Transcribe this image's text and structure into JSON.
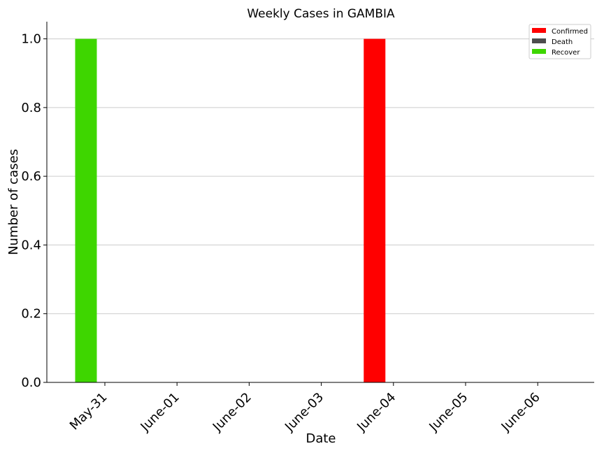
{
  "chart_data": {
    "type": "bar",
    "title": "Weekly Cases in GAMBIA",
    "xlabel": "Date",
    "ylabel": "Number of cases",
    "categories": [
      "May-31",
      "June-01",
      "June-02",
      "June-03",
      "June-04",
      "June-05",
      "June-06"
    ],
    "series": [
      {
        "name": "Confirmed",
        "color": "#ff0000",
        "values": [
          0,
          0,
          0,
          0,
          1,
          0,
          0
        ]
      },
      {
        "name": "Death",
        "color": "#4d4d4d",
        "values": [
          0,
          0,
          0,
          0,
          0,
          0,
          0
        ]
      },
      {
        "name": "Recover",
        "color": "#3ed600",
        "values": [
          1,
          0,
          0,
          0,
          0,
          0,
          0
        ]
      }
    ],
    "ylim": [
      0,
      1.05
    ],
    "yticks": [
      "0.0",
      "0.2",
      "0.4",
      "0.6",
      "0.8",
      "1.0"
    ],
    "grid": "y",
    "legend_position": "top-right"
  }
}
